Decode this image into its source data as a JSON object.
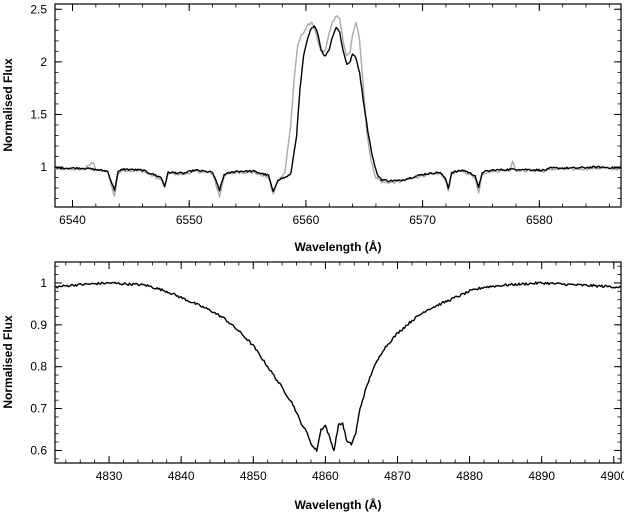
{
  "chart_data": [
    {
      "type": "line",
      "title": "",
      "xlabel": "Wavelength (Å)",
      "ylabel": "Normalised Flux",
      "xlim": [
        6538.5,
        6587
      ],
      "ylim": [
        0.62,
        2.55
      ],
      "xticks": [
        6540,
        6550,
        6560,
        6570,
        6580
      ],
      "xtick_labels": [
        "6540",
        "6550",
        "6560",
        "6570",
        "6580"
      ],
      "yticks": [
        1,
        1.5,
        2,
        2.5
      ],
      "ytick_labels": [
        "1",
        "1.5",
        "2",
        "2.5"
      ],
      "grid": false,
      "series": [
        {
          "color": "#000000",
          "x": [
            6538.5,
            6541,
            6543,
            6543.6,
            6543.9,
            6544.3,
            6546,
            6547.6,
            6547.9,
            6548.2,
            6549.5,
            6550.5,
            6552,
            6552.6,
            6553,
            6554,
            6555.5,
            6556.8,
            6557.2,
            6557.6,
            6558.2,
            6558.7,
            6559.2,
            6559.5,
            6559.8,
            6560.1,
            6560.4,
            6560.7,
            6561.0,
            6561.3,
            6561.6,
            6562.0,
            6562.3,
            6562.6,
            6562.9,
            6563.2,
            6563.5,
            6563.8,
            6564.0,
            6564.3,
            6564.6,
            6564.9,
            6565.3,
            6565.7,
            6566.1,
            6566.5,
            6567.0,
            6568.0,
            6569.0,
            6570.0,
            6571.5,
            6572.0,
            6572.2,
            6572.5,
            6573.5,
            6574.5,
            6574.8,
            6575.1,
            6576,
            6578,
            6580.5,
            6581,
            6583,
            6585,
            6587
          ],
          "y": [
            0.99,
            0.99,
            0.96,
            0.78,
            0.95,
            0.98,
            0.97,
            0.9,
            0.82,
            0.95,
            0.94,
            0.97,
            0.95,
            0.78,
            0.93,
            0.96,
            0.96,
            0.92,
            0.76,
            0.88,
            0.9,
            0.93,
            1.3,
            1.75,
            2.05,
            2.2,
            2.3,
            2.35,
            2.28,
            2.12,
            2.05,
            2.12,
            2.25,
            2.33,
            2.28,
            2.1,
            1.98,
            2.0,
            2.08,
            2.03,
            1.9,
            1.65,
            1.35,
            1.1,
            0.93,
            0.88,
            0.87,
            0.87,
            0.9,
            0.93,
            0.95,
            0.88,
            0.8,
            0.95,
            0.97,
            0.92,
            0.8,
            0.95,
            0.97,
            0.98,
            0.97,
            0.99,
            0.99,
            1.0,
            0.99
          ]
        },
        {
          "color": "#aaaaaa",
          "x": [
            6538.5,
            6541,
            6541.8,
            6542.0,
            6543,
            6543.6,
            6543.9,
            6544.3,
            6546,
            6547.6,
            6547.9,
            6548.2,
            6549.5,
            6550.5,
            6552,
            6552.6,
            6553,
            6554,
            6555.5,
            6556.8,
            6557.2,
            6557.6,
            6558.2,
            6558.7,
            6559.0,
            6559.3,
            6559.6,
            6559.9,
            6560.2,
            6560.5,
            6560.8,
            6561.1,
            6561.4,
            6561.7,
            6562.0,
            6562.3,
            6562.6,
            6562.9,
            6563.2,
            6563.5,
            6563.8,
            6564.0,
            6564.3,
            6564.6,
            6564.9,
            6565.2,
            6565.6,
            6566.0,
            6566.5,
            6567.0,
            6568.0,
            6569.0,
            6570.0,
            6571.5,
            6572.0,
            6572.2,
            6572.5,
            6573.5,
            6574.5,
            6574.8,
            6575.1,
            6576,
            6577.5,
            6577.7,
            6578,
            6580.5,
            6581,
            6583,
            6585,
            6587
          ],
          "y": [
            0.98,
            0.98,
            1.05,
            0.97,
            0.96,
            0.72,
            0.94,
            0.97,
            0.96,
            0.88,
            0.8,
            0.94,
            0.93,
            0.96,
            0.94,
            0.72,
            0.92,
            0.95,
            0.95,
            0.9,
            0.74,
            0.87,
            0.95,
            1.4,
            1.85,
            2.15,
            2.25,
            2.3,
            2.35,
            2.38,
            2.3,
            2.15,
            2.08,
            2.12,
            2.28,
            2.38,
            2.44,
            2.4,
            2.2,
            2.05,
            2.1,
            2.25,
            2.38,
            2.2,
            1.8,
            1.35,
            1.05,
            0.9,
            0.86,
            0.85,
            0.86,
            0.89,
            0.92,
            0.94,
            0.87,
            0.78,
            0.94,
            0.96,
            0.9,
            0.75,
            0.94,
            0.96,
            0.97,
            1.06,
            0.97,
            0.96,
            0.98,
            0.98,
            0.99,
            0.98
          ]
        }
      ]
    },
    {
      "type": "line",
      "title": "",
      "xlabel": "Wavelength (Å)",
      "ylabel": "Normalised Flux",
      "xlim": [
        4822.5,
        4901
      ],
      "ylim": [
        0.57,
        1.05
      ],
      "xticks": [
        4830,
        4840,
        4850,
        4860,
        4870,
        4880,
        4890,
        4900
      ],
      "xtick_labels": [
        "4830",
        "4840",
        "4850",
        "4860",
        "4870",
        "4880",
        "4890",
        "4900"
      ],
      "yticks": [
        0.6,
        0.7,
        0.8,
        0.9,
        1
      ],
      "ytick_labels": [
        "0.6",
        "0.7",
        "0.8",
        "0.9",
        "1"
      ],
      "grid": false,
      "series": [
        {
          "color": "#000000",
          "x": [
            4822.5,
            4825,
            4830,
            4835,
            4838,
            4840,
            4842,
            4844,
            4846,
            4848,
            4850,
            4852,
            4854,
            4855.5,
            4856.5,
            4857.5,
            4858.2,
            4858.8,
            4859.4,
            4860.0,
            4860.6,
            4861.2,
            4861.8,
            4862.4,
            4863.0,
            4863.6,
            4864.2,
            4864.8,
            4865.5,
            4866.5,
            4868,
            4870,
            4872,
            4874,
            4876,
            4878,
            4880,
            4882,
            4885,
            4890,
            4895,
            4901
          ],
          "y": [
            0.99,
            0.995,
            1.0,
            0.995,
            0.98,
            0.965,
            0.95,
            0.935,
            0.915,
            0.885,
            0.85,
            0.8,
            0.75,
            0.71,
            0.67,
            0.64,
            0.61,
            0.6,
            0.65,
            0.66,
            0.63,
            0.6,
            0.66,
            0.665,
            0.62,
            0.615,
            0.64,
            0.7,
            0.74,
            0.79,
            0.84,
            0.88,
            0.91,
            0.935,
            0.95,
            0.965,
            0.98,
            0.99,
            0.995,
            1.0,
            0.995,
            0.99
          ]
        }
      ]
    }
  ]
}
